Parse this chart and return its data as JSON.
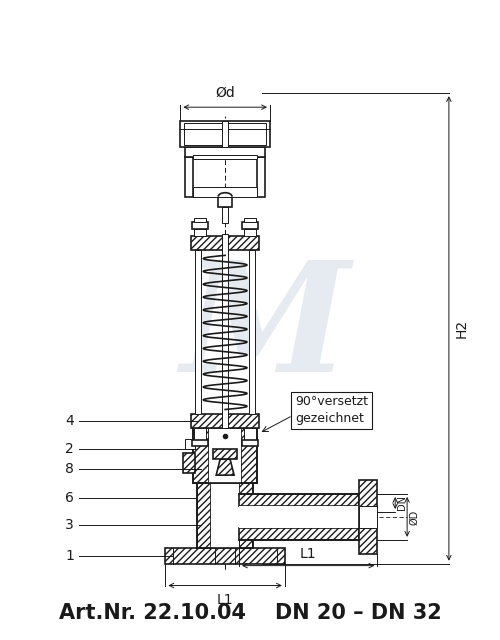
{
  "title": "Art.Nr. 22.10.04    DN 20 – DN 32",
  "bg_color": "#ffffff",
  "line_color": "#1a1a1a",
  "watermark": "M",
  "dim_label_H2": "H2",
  "dim_label_L1": "L1",
  "dim_label_DN": "DN",
  "dim_label_phiD": "ØD",
  "dim_label_phid": "Ød",
  "note_text": "90°versetzt\ngezeichnet",
  "title_fontsize": 15,
  "label_fontsize": 10,
  "note_fontsize": 9
}
